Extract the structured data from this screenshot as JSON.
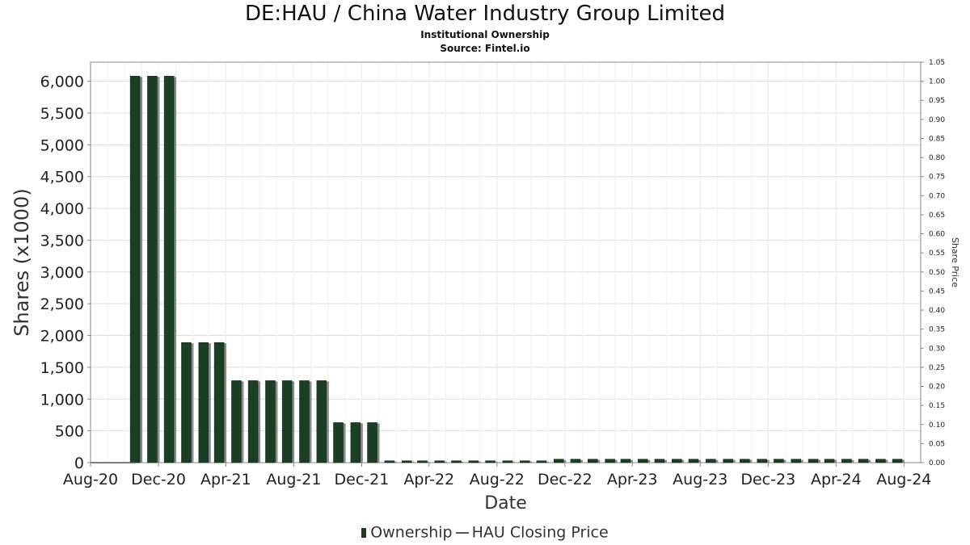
{
  "header": {
    "title": "DE:HAU / China Water Industry Group Limited",
    "subtitle": "Institutional Ownership",
    "source": "Source: Fintel.io"
  },
  "legend": {
    "ownership": "Ownership",
    "price": "HAU Closing Price"
  },
  "colors": {
    "bar": "#1b3f24",
    "bar_shadow": "#8a8a8a",
    "grid": "#dddddd",
    "frame": "#888888"
  },
  "chart_data": {
    "type": "bar",
    "title": "DE:HAU / China Water Industry Group Limited",
    "xlabel": "Date",
    "ylabel": "Shares (x1000)",
    "y2label": "Share Price",
    "xlim": [
      "2020-08-01",
      "2024-08-31"
    ],
    "ylim": [
      0,
      6300
    ],
    "y2lim": [
      0,
      1.05
    ],
    "xticks": [
      {
        "date": "2020-08-01",
        "label": "Aug-20"
      },
      {
        "date": "2020-12-01",
        "label": "Dec-20"
      },
      {
        "date": "2021-04-01",
        "label": "Apr-21"
      },
      {
        "date": "2021-08-01",
        "label": "Aug-21"
      },
      {
        "date": "2021-12-01",
        "label": "Dec-21"
      },
      {
        "date": "2022-04-01",
        "label": "Apr-22"
      },
      {
        "date": "2022-08-01",
        "label": "Aug-22"
      },
      {
        "date": "2022-12-01",
        "label": "Dec-22"
      },
      {
        "date": "2023-04-01",
        "label": "Apr-23"
      },
      {
        "date": "2023-08-01",
        "label": "Aug-23"
      },
      {
        "date": "2023-12-01",
        "label": "Dec-23"
      },
      {
        "date": "2024-04-01",
        "label": "Apr-24"
      },
      {
        "date": "2024-08-01",
        "label": "Aug-24"
      }
    ],
    "yticks": [
      {
        "value": 0,
        "label": "0"
      },
      {
        "value": 500,
        "label": "500"
      },
      {
        "value": 1000,
        "label": "1,000"
      },
      {
        "value": 1500,
        "label": "1,500"
      },
      {
        "value": 2000,
        "label": "2,000"
      },
      {
        "value": 2500,
        "label": "2,500"
      },
      {
        "value": 3000,
        "label": "3,000"
      },
      {
        "value": 3500,
        "label": "3,500"
      },
      {
        "value": 4000,
        "label": "4,000"
      },
      {
        "value": 4500,
        "label": "4,500"
      },
      {
        "value": 5000,
        "label": "5,000"
      },
      {
        "value": 5500,
        "label": "5,500"
      },
      {
        "value": 6000,
        "label": "6,000"
      }
    ],
    "y2ticks": [
      "0.00",
      "0.05",
      "0.10",
      "0.15",
      "0.20",
      "0.25",
      "0.30",
      "0.35",
      "0.40",
      "0.45",
      "0.50",
      "0.55",
      "0.60",
      "0.65",
      "0.70",
      "0.75",
      "0.80",
      "0.85",
      "0.90",
      "0.95",
      "1.00",
      "1.05"
    ],
    "series": [
      {
        "name": "Ownership",
        "dates": [
          "2020-10-20",
          "2020-11-20",
          "2020-12-20",
          "2021-01-20",
          "2021-02-20",
          "2021-03-20",
          "2021-04-20",
          "2021-05-20",
          "2021-06-20",
          "2021-07-20",
          "2021-08-20",
          "2021-09-20",
          "2021-10-20",
          "2021-11-20",
          "2021-12-20",
          "2022-01-20",
          "2022-02-20",
          "2022-03-20",
          "2022-04-20",
          "2022-05-20",
          "2022-06-20",
          "2022-07-20",
          "2022-08-20",
          "2022-09-20",
          "2022-10-20",
          "2022-11-20",
          "2022-12-20",
          "2023-01-20",
          "2023-02-20",
          "2023-03-20",
          "2023-04-20",
          "2023-05-20",
          "2023-06-20",
          "2023-07-20",
          "2023-08-20",
          "2023-09-20",
          "2023-10-20",
          "2023-11-20",
          "2023-12-20",
          "2024-01-20",
          "2024-02-20",
          "2024-03-20",
          "2024-04-20",
          "2024-05-20",
          "2024-06-20",
          "2024-07-20"
        ],
        "values": [
          6080,
          6080,
          6080,
          1890,
          1890,
          1890,
          1290,
          1290,
          1290,
          1290,
          1290,
          1290,
          630,
          630,
          630,
          30,
          30,
          30,
          30,
          30,
          30,
          30,
          30,
          30,
          30,
          55,
          55,
          55,
          55,
          55,
          55,
          55,
          55,
          55,
          55,
          55,
          55,
          55,
          55,
          55,
          55,
          55,
          55,
          55,
          55,
          55
        ]
      },
      {
        "name": "HAU Closing Price",
        "dates": [
          "2020-08-01",
          "2020-10-20"
        ],
        "values": [
          0.0,
          0.0
        ]
      }
    ],
    "grid": true,
    "legend_position": "bottom"
  }
}
